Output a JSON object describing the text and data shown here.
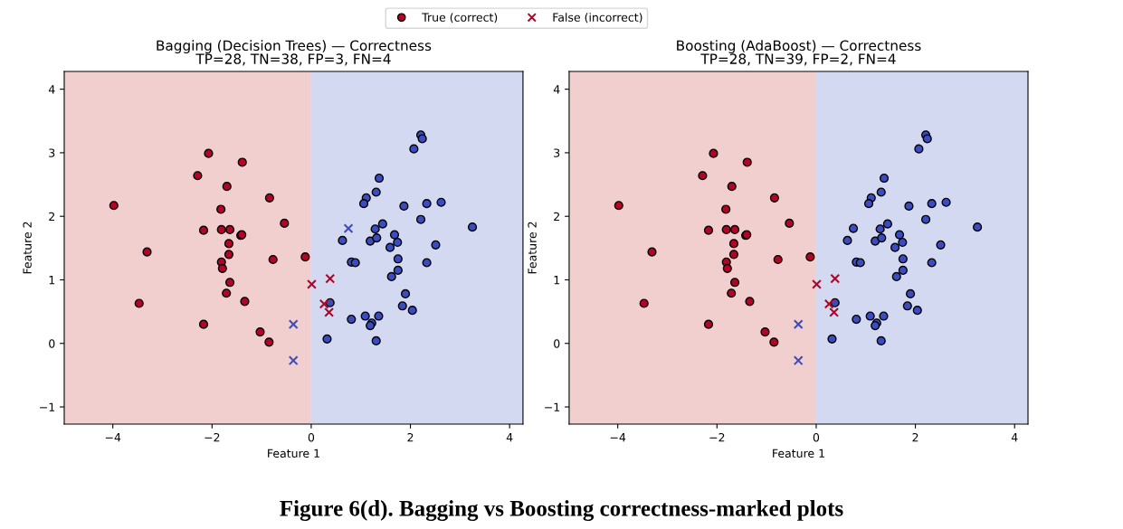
{
  "chart_data": [
    {
      "type": "scatter",
      "title": "Bagging (Decision Trees) — Correctness",
      "subtitle": "TP=28, TN=38, FP=3, FN=4",
      "xlabel": "Feature 1",
      "ylabel": "Feature 2",
      "xlim": [
        -4.98,
        4.27
      ],
      "ylim": [
        -1.27,
        4.28
      ],
      "xticks": [
        -4,
        -2,
        0,
        2,
        4
      ],
      "yticks": [
        -1,
        0,
        1,
        2,
        3,
        4
      ],
      "grid": false,
      "legend": "top",
      "bands": [
        {
          "axis": "x",
          "from": -4.98,
          "to": 0.0,
          "color": "#f2cfcf"
        },
        {
          "axis": "x",
          "from": 0.0,
          "to": 4.27,
          "color": "#d4d9f2"
        }
      ],
      "annotations": [
        "Figure 6(d). Bagging vs Boosting correctness-marked plots"
      ],
      "series": [
        {
          "name": "True (correct)",
          "marker": "circle",
          "color": "#b40426",
          "x": [
            -2.07,
            -1.39,
            -2.29,
            -1.7,
            -0.84,
            -3.98,
            -1.82,
            -0.54,
            -2.17,
            -1.81,
            -1.64,
            -1.42,
            -1.4,
            -1.66,
            -3.31,
            -1.66,
            -0.77,
            -1.81,
            -1.79,
            -1.64,
            -1.71,
            -1.34,
            -3.47,
            -2.17,
            -1.03,
            -0.85,
            -0.12,
            2.21,
            2.24,
            2.07,
            1.37,
            1.31,
            1.11,
            1.06,
            1.87,
            2.33,
            2.62,
            2.21,
            1.44,
            1.29,
            3.25,
            0.63,
            1.19,
            1.32,
            1.68,
            1.74,
            1.59,
            2.51,
            0.81,
            0.89,
            1.75,
            2.33,
            1.75,
            1.62,
            1.9,
            0.38,
            1.84,
            2.04,
            0.81,
            1.09,
            1.36,
            1.22,
            1.19,
            0.32,
            1.31
          ],
          "values": [
            2.99,
            2.85,
            2.64,
            2.47,
            2.29,
            2.17,
            2.11,
            1.89,
            1.78,
            1.79,
            1.79,
            1.7,
            1.71,
            1.57,
            1.44,
            1.4,
            1.32,
            1.28,
            1.18,
            0.96,
            0.79,
            0.66,
            0.63,
            0.3,
            0.18,
            0.02,
            1.36,
            3.28,
            3.22,
            3.06,
            2.6,
            2.38,
            2.29,
            2.2,
            2.16,
            2.2,
            2.22,
            1.95,
            1.88,
            1.8,
            1.83,
            1.62,
            1.61,
            1.66,
            1.71,
            1.59,
            1.51,
            1.55,
            1.28,
            1.27,
            1.33,
            1.27,
            1.15,
            1.05,
            0.78,
            0.64,
            0.59,
            0.52,
            0.38,
            0.43,
            0.43,
            0.32,
            0.28,
            0.07,
            0.04
          ],
          "colors": [
            "#b40426",
            "#b40426",
            "#b40426",
            "#b40426",
            "#b40426",
            "#b40426",
            "#b40426",
            "#b40426",
            "#b40426",
            "#b40426",
            "#b40426",
            "#b40426",
            "#b40426",
            "#b40426",
            "#b40426",
            "#b40426",
            "#b40426",
            "#b40426",
            "#b40426",
            "#b40426",
            "#b40426",
            "#b40426",
            "#b40426",
            "#b40426",
            "#b40426",
            "#b40426",
            "#b40426",
            "#3b4cc0",
            "#3b4cc0",
            "#3b4cc0",
            "#3b4cc0",
            "#3b4cc0",
            "#3b4cc0",
            "#3b4cc0",
            "#3b4cc0",
            "#3b4cc0",
            "#3b4cc0",
            "#3b4cc0",
            "#3b4cc0",
            "#3b4cc0",
            "#3b4cc0",
            "#3b4cc0",
            "#3b4cc0",
            "#3b4cc0",
            "#3b4cc0",
            "#3b4cc0",
            "#3b4cc0",
            "#3b4cc0",
            "#3b4cc0",
            "#3b4cc0",
            "#3b4cc0",
            "#3b4cc0",
            "#3b4cc0",
            "#3b4cc0",
            "#3b4cc0",
            "#3b4cc0",
            "#3b4cc0",
            "#3b4cc0",
            "#3b4cc0",
            "#3b4cc0",
            "#3b4cc0",
            "#3b4cc0",
            "#3b4cc0",
            "#3b4cc0",
            "#3b4cc0"
          ]
        },
        {
          "name": "False (incorrect)",
          "marker": "cross",
          "color": "#b40426",
          "x": [
            -0.36,
            -0.36,
            0.75,
            0.38,
            0.01,
            0.26,
            0.36
          ],
          "values": [
            0.3,
            -0.27,
            1.81,
            1.02,
            0.93,
            0.62,
            0.49
          ],
          "colors": [
            "#3b4cc0",
            "#3b4cc0",
            "#3b4cc0",
            "#b40426",
            "#b40426",
            "#b40426",
            "#b40426"
          ]
        }
      ]
    },
    {
      "type": "scatter",
      "title": "Boosting (AdaBoost) — Correctness",
      "subtitle": "TP=28, TN=39, FP=2, FN=4",
      "xlabel": "Feature 1",
      "ylabel": "Feature 2",
      "xlim": [
        -4.98,
        4.27
      ],
      "ylim": [
        -1.27,
        4.28
      ],
      "xticks": [
        -4,
        -2,
        0,
        2,
        4
      ],
      "yticks": [
        -1,
        0,
        1,
        2,
        3,
        4
      ],
      "grid": false,
      "bands": [
        {
          "axis": "x",
          "from": -4.98,
          "to": 0.0,
          "color": "#f2cfcf"
        },
        {
          "axis": "x",
          "from": 0.0,
          "to": 4.27,
          "color": "#d4d9f2"
        }
      ],
      "series": [
        {
          "marker": "circle",
          "x": [
            -2.07,
            -1.39,
            -2.29,
            -1.7,
            -0.84,
            -3.98,
            -1.82,
            -0.54,
            -2.17,
            -1.81,
            -1.64,
            -1.42,
            -1.4,
            -1.66,
            -3.31,
            -1.66,
            -0.77,
            -1.81,
            -1.79,
            -1.64,
            -1.71,
            -1.34,
            -3.47,
            -2.17,
            -1.03,
            -0.85,
            -0.12,
            2.21,
            2.24,
            2.07,
            1.37,
            1.31,
            1.11,
            1.06,
            1.87,
            2.33,
            2.62,
            2.21,
            1.44,
            1.29,
            3.25,
            0.63,
            1.19,
            1.32,
            1.68,
            1.74,
            1.59,
            2.51,
            0.81,
            0.89,
            1.75,
            2.33,
            1.75,
            1.62,
            1.9,
            0.38,
            1.84,
            2.04,
            0.81,
            1.09,
            1.36,
            1.22,
            1.19,
            0.32,
            1.31,
            0.75
          ],
          "values": [
            2.99,
            2.85,
            2.64,
            2.47,
            2.29,
            2.17,
            2.11,
            1.89,
            1.78,
            1.79,
            1.79,
            1.7,
            1.71,
            1.57,
            1.44,
            1.4,
            1.32,
            1.28,
            1.18,
            0.96,
            0.79,
            0.66,
            0.63,
            0.3,
            0.18,
            0.02,
            1.36,
            3.28,
            3.22,
            3.06,
            2.6,
            2.38,
            2.29,
            2.2,
            2.16,
            2.2,
            2.22,
            1.95,
            1.88,
            1.8,
            1.83,
            1.62,
            1.61,
            1.66,
            1.71,
            1.59,
            1.51,
            1.55,
            1.28,
            1.27,
            1.33,
            1.27,
            1.15,
            1.05,
            0.78,
            0.64,
            0.59,
            0.52,
            0.38,
            0.43,
            0.43,
            0.32,
            0.28,
            0.07,
            0.04,
            1.81
          ],
          "colors": [
            "#b40426",
            "#b40426",
            "#b40426",
            "#b40426",
            "#b40426",
            "#b40426",
            "#b40426",
            "#b40426",
            "#b40426",
            "#b40426",
            "#b40426",
            "#b40426",
            "#b40426",
            "#b40426",
            "#b40426",
            "#b40426",
            "#b40426",
            "#b40426",
            "#b40426",
            "#b40426",
            "#b40426",
            "#b40426",
            "#b40426",
            "#b40426",
            "#b40426",
            "#b40426",
            "#b40426",
            "#3b4cc0",
            "#3b4cc0",
            "#3b4cc0",
            "#3b4cc0",
            "#3b4cc0",
            "#3b4cc0",
            "#3b4cc0",
            "#3b4cc0",
            "#3b4cc0",
            "#3b4cc0",
            "#3b4cc0",
            "#3b4cc0",
            "#3b4cc0",
            "#3b4cc0",
            "#3b4cc0",
            "#3b4cc0",
            "#3b4cc0",
            "#3b4cc0",
            "#3b4cc0",
            "#3b4cc0",
            "#3b4cc0",
            "#3b4cc0",
            "#3b4cc0",
            "#3b4cc0",
            "#3b4cc0",
            "#3b4cc0",
            "#3b4cc0",
            "#3b4cc0",
            "#3b4cc0",
            "#3b4cc0",
            "#3b4cc0",
            "#3b4cc0",
            "#3b4cc0",
            "#3b4cc0",
            "#3b4cc0",
            "#3b4cc0",
            "#3b4cc0",
            "#3b4cc0",
            "#3b4cc0"
          ]
        },
        {
          "marker": "cross",
          "x": [
            -0.36,
            -0.36,
            0.38,
            0.01,
            0.26,
            0.36
          ],
          "values": [
            0.3,
            -0.27,
            1.02,
            0.93,
            0.62,
            0.49
          ],
          "colors": [
            "#3b4cc0",
            "#3b4cc0",
            "#b40426",
            "#b40426",
            "#b40426",
            "#b40426"
          ]
        }
      ]
    }
  ]
}
